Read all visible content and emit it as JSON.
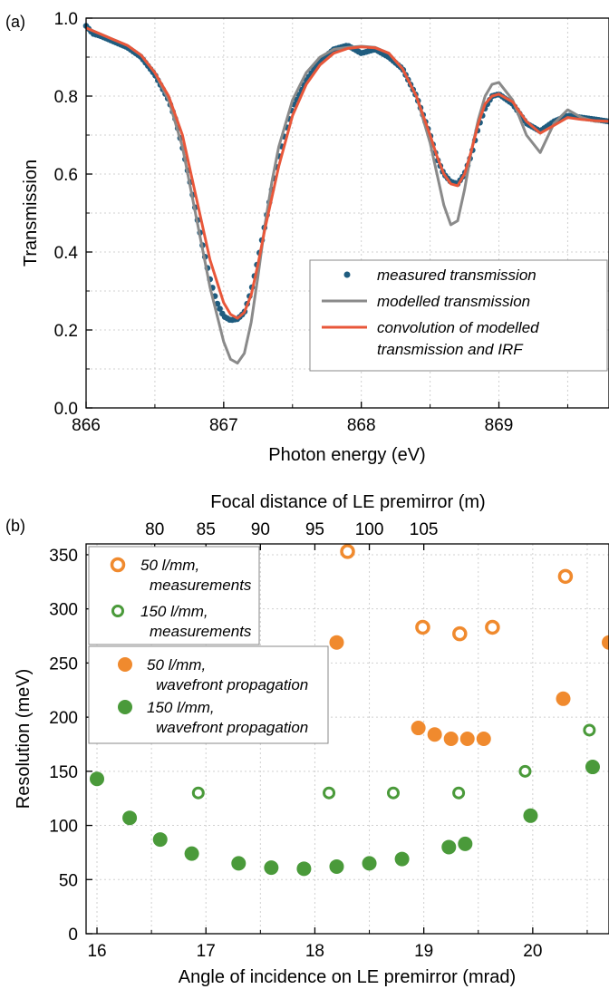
{
  "colors": {
    "measured": "#1f5c7f",
    "modelled": "#8a8a8a",
    "convolution": "#e8573a",
    "orange": "#f08a2e",
    "green": "#4a9a3a"
  },
  "chart_data": [
    {
      "panel_label": "(a)",
      "type": "line",
      "xlabel": "Photon energy (eV)",
      "ylabel": "Transmission",
      "xlim": [
        866,
        869.8
      ],
      "ylim": [
        0,
        1.0
      ],
      "xticks": [
        "866",
        "867",
        "868",
        "869"
      ],
      "yticks": [
        "0.0",
        "0.2",
        "0.4",
        "0.6",
        "0.8",
        "1.0"
      ],
      "grid": true,
      "legend_position": "lower-right",
      "series": [
        {
          "name": "measured transmission",
          "style": "markers",
          "x": [
            866.0,
            866.05,
            866.1,
            866.2,
            866.3,
            866.4,
            866.5,
            866.6,
            866.65,
            866.7,
            866.75,
            866.8,
            866.85,
            866.9,
            866.95,
            867.0,
            867.05,
            867.1,
            867.15,
            867.2,
            867.25,
            867.3,
            867.35,
            867.4,
            867.45,
            867.5,
            867.6,
            867.7,
            867.8,
            867.9,
            868.0,
            868.1,
            868.2,
            868.3,
            868.4,
            868.5,
            868.55,
            868.6,
            868.65,
            868.7,
            868.75,
            868.8,
            868.85,
            868.9,
            868.95,
            869.0,
            869.1,
            869.2,
            869.3,
            869.4,
            869.5,
            869.6,
            869.7,
            869.8
          ],
          "y": [
            0.98,
            0.96,
            0.955,
            0.94,
            0.925,
            0.9,
            0.855,
            0.79,
            0.74,
            0.67,
            0.59,
            0.5,
            0.41,
            0.33,
            0.27,
            0.235,
            0.225,
            0.228,
            0.245,
            0.3,
            0.38,
            0.47,
            0.56,
            0.64,
            0.71,
            0.77,
            0.84,
            0.89,
            0.92,
            0.93,
            0.91,
            0.92,
            0.9,
            0.87,
            0.8,
            0.7,
            0.64,
            0.6,
            0.58,
            0.575,
            0.6,
            0.65,
            0.72,
            0.77,
            0.8,
            0.805,
            0.78,
            0.73,
            0.71,
            0.735,
            0.75,
            0.745,
            0.74,
            0.735
          ]
        },
        {
          "name": "modelled transmission",
          "style": "line",
          "x": [
            866.0,
            866.1,
            866.2,
            866.3,
            866.4,
            866.5,
            866.6,
            866.7,
            866.8,
            866.9,
            867.0,
            867.05,
            867.1,
            867.15,
            867.2,
            867.25,
            867.3,
            867.35,
            867.4,
            867.5,
            867.6,
            867.7,
            867.8,
            867.9,
            868.0,
            868.1,
            868.2,
            868.3,
            868.4,
            868.5,
            868.55,
            868.6,
            868.65,
            868.7,
            868.75,
            868.8,
            868.85,
            868.9,
            868.95,
            869.0,
            869.1,
            869.2,
            869.3,
            869.4,
            869.5,
            869.6,
            869.7,
            869.8
          ],
          "y": [
            0.975,
            0.96,
            0.945,
            0.93,
            0.905,
            0.86,
            0.79,
            0.67,
            0.49,
            0.31,
            0.17,
            0.125,
            0.115,
            0.14,
            0.22,
            0.34,
            0.47,
            0.58,
            0.67,
            0.79,
            0.86,
            0.9,
            0.92,
            0.925,
            0.928,
            0.925,
            0.91,
            0.87,
            0.8,
            0.68,
            0.6,
            0.52,
            0.47,
            0.48,
            0.56,
            0.66,
            0.74,
            0.8,
            0.83,
            0.835,
            0.79,
            0.7,
            0.655,
            0.73,
            0.765,
            0.745,
            0.735,
            0.735
          ]
        },
        {
          "name": "convolution of modelled transmission and IRF",
          "style": "line",
          "x": [
            866.0,
            866.1,
            866.2,
            866.3,
            866.4,
            866.5,
            866.6,
            866.7,
            866.8,
            866.9,
            867.0,
            867.05,
            867.1,
            867.15,
            867.2,
            867.25,
            867.3,
            867.4,
            867.5,
            867.6,
            867.7,
            867.8,
            867.9,
            868.0,
            868.1,
            868.2,
            868.3,
            868.4,
            868.5,
            868.55,
            868.6,
            868.65,
            868.7,
            868.75,
            868.8,
            868.85,
            868.9,
            868.95,
            869.0,
            869.1,
            869.2,
            869.3,
            869.4,
            869.5,
            869.6,
            869.7,
            869.8
          ],
          "y": [
            0.975,
            0.96,
            0.945,
            0.93,
            0.905,
            0.86,
            0.8,
            0.7,
            0.54,
            0.38,
            0.27,
            0.24,
            0.23,
            0.245,
            0.29,
            0.37,
            0.46,
            0.62,
            0.75,
            0.83,
            0.88,
            0.91,
            0.922,
            0.926,
            0.924,
            0.91,
            0.87,
            0.8,
            0.7,
            0.645,
            0.6,
            0.575,
            0.57,
            0.6,
            0.66,
            0.73,
            0.78,
            0.8,
            0.805,
            0.785,
            0.735,
            0.705,
            0.725,
            0.745,
            0.74,
            0.737,
            0.735
          ]
        }
      ]
    },
    {
      "panel_label": "(b)",
      "type": "scatter",
      "xlabel": "Angle of incidence on LE premirror (mrad)",
      "ylabel": "Resolution (meV)",
      "x2label": "Focal distance of LE premirror (m)",
      "xlim": [
        15.9,
        20.7
      ],
      "ylim": [
        0,
        360
      ],
      "xticks": [
        "16",
        "17",
        "18",
        "19",
        "20"
      ],
      "x2ticks": [
        "80",
        "85",
        "90",
        "95",
        "100",
        "105"
      ],
      "yticks": [
        "0",
        "50",
        "100",
        "150",
        "200",
        "250",
        "300",
        "350"
      ],
      "grid": true,
      "legend_position": "top-left",
      "series": [
        {
          "name": "50 l/mm, measurements",
          "marker": "open-circle",
          "x": [
            18.3,
            18.99,
            19.33,
            19.63,
            20.3
          ],
          "y": [
            353,
            283,
            277,
            283,
            330
          ]
        },
        {
          "name": "150 l/mm, measurements",
          "marker": "open-circle",
          "x": [
            16.93,
            18.13,
            18.72,
            19.32,
            19.93,
            20.52
          ],
          "y": [
            130,
            130,
            130,
            130,
            150,
            188
          ]
        },
        {
          "name": "50 l/mm, wavefront propagation",
          "marker": "filled-circle",
          "x": [
            18.2,
            18.95,
            19.1,
            19.25,
            19.4,
            19.55,
            20.28,
            20.7
          ],
          "y": [
            269,
            190,
            184,
            180,
            180,
            180,
            217,
            269
          ]
        },
        {
          "name": "150 l/mm, wavefront propagation",
          "marker": "filled-circle",
          "x": [
            16.0,
            16.3,
            16.58,
            16.87,
            17.3,
            17.6,
            17.9,
            18.2,
            18.5,
            18.8,
            19.23,
            19.38,
            19.98,
            20.55
          ],
          "y": [
            143,
            107,
            87,
            74,
            65,
            61,
            60,
            62,
            65,
            69,
            80,
            83,
            109,
            154
          ]
        }
      ]
    }
  ]
}
